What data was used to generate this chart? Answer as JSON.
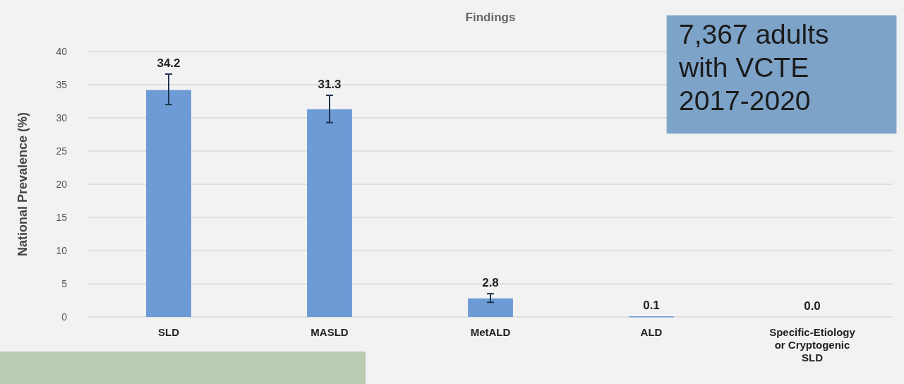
{
  "chart_data": {
    "type": "bar",
    "title": "Findings",
    "ylabel": "National Prevalence (%)",
    "categories": [
      "SLD",
      "MASLD",
      "MetALD",
      "ALD",
      "Specific-Etiology or Cryptogenic SLD"
    ],
    "values": [
      34.2,
      31.3,
      2.8,
      0.1,
      0.0
    ],
    "color": "#6d9bd6",
    "errors": [
      [
        32.0,
        36.6
      ],
      [
        29.3,
        33.4
      ],
      [
        2.2,
        3.5
      ],
      null,
      null
    ],
    "ylim": [
      0,
      40
    ],
    "yticks": [
      0,
      5,
      10,
      15,
      20,
      25,
      30,
      35,
      40
    ],
    "grid": "y",
    "value_labels": [
      "34.2",
      "31.3",
      "2.8",
      "0.1",
      "0.0"
    ],
    "annotations": [
      "7,367 adults with VCTE 2017-2020"
    ]
  }
}
